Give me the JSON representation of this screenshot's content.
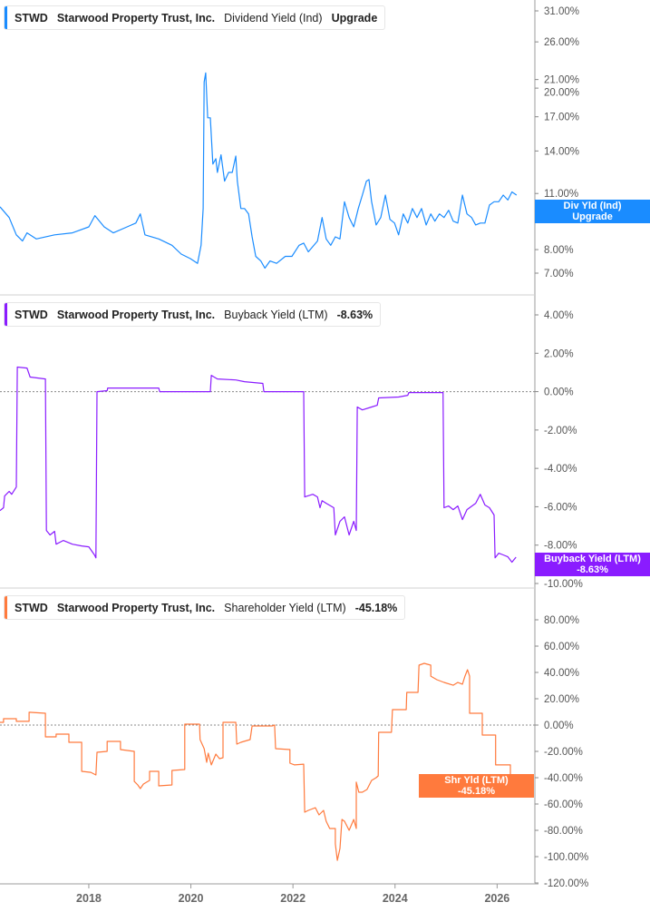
{
  "colors": {
    "dividend": "#1a8cff",
    "buyback": "#8a1cff",
    "shareholder": "#ff7a3d",
    "axis": "#bdbdbd",
    "zero_line": "#888888"
  },
  "chart_data": [
    {
      "type": "line",
      "legend": {
        "ticker": "STWD",
        "company": "Starwood Property Trust, Inc.",
        "metric": "Dividend Yield (Ind)",
        "value": "Upgrade"
      },
      "tag": {
        "line1": "Div Yld (Ind)",
        "line2": "Upgrade"
      },
      "y_scale": "log",
      "ylim": [
        6.5,
        33
      ],
      "y_ticks": [
        {
          "v": 31,
          "label": "31.00%"
        },
        {
          "v": 26,
          "label": "26.00%"
        },
        {
          "v": 21,
          "label": "21.00%"
        },
        {
          "v": 20,
          "label": "20.00%"
        },
        {
          "v": 17,
          "label": "17.00%"
        },
        {
          "v": 14,
          "label": "14.00%"
        },
        {
          "v": 11,
          "label": "11.00%"
        },
        {
          "v": 8,
          "label": "8.00%"
        },
        {
          "v": 7,
          "label": "7.00%"
        }
      ],
      "points": [
        [
          2016.26,
          10.2
        ],
        [
          2016.44,
          9.6
        ],
        [
          2016.58,
          8.7
        ],
        [
          2016.7,
          8.4
        ],
        [
          2016.79,
          8.8
        ],
        [
          2016.97,
          8.5
        ],
        [
          2017.33,
          8.7
        ],
        [
          2017.68,
          8.8
        ],
        [
          2018.0,
          9.1
        ],
        [
          2018.12,
          9.7
        ],
        [
          2018.3,
          9.1
        ],
        [
          2018.48,
          8.8
        ],
        [
          2018.75,
          9.1
        ],
        [
          2018.92,
          9.3
        ],
        [
          2019.01,
          9.8
        ],
        [
          2019.1,
          8.7
        ],
        [
          2019.37,
          8.5
        ],
        [
          2019.63,
          8.2
        ],
        [
          2019.81,
          7.8
        ],
        [
          2019.99,
          7.6
        ],
        [
          2020.13,
          7.4
        ],
        [
          2020.2,
          8.2
        ],
        [
          2020.24,
          10.1
        ],
        [
          2020.26,
          20.7
        ],
        [
          2020.29,
          21.8
        ],
        [
          2020.33,
          16.9
        ],
        [
          2020.38,
          16.9
        ],
        [
          2020.43,
          13.0
        ],
        [
          2020.49,
          13.4
        ],
        [
          2020.52,
          12.4
        ],
        [
          2020.59,
          13.7
        ],
        [
          2020.66,
          11.8
        ],
        [
          2020.74,
          12.4
        ],
        [
          2020.81,
          12.4
        ],
        [
          2020.88,
          13.6
        ],
        [
          2020.91,
          11.8
        ],
        [
          2020.98,
          10.1
        ],
        [
          2021.05,
          10.1
        ],
        [
          2021.13,
          9.8
        ],
        [
          2021.2,
          8.6
        ],
        [
          2021.27,
          7.7
        ],
        [
          2021.37,
          7.5
        ],
        [
          2021.45,
          7.2
        ],
        [
          2021.55,
          7.5
        ],
        [
          2021.68,
          7.4
        ],
        [
          2021.85,
          7.7
        ],
        [
          2021.98,
          7.7
        ],
        [
          2022.12,
          8.2
        ],
        [
          2022.21,
          8.3
        ],
        [
          2022.3,
          7.9
        ],
        [
          2022.48,
          8.4
        ],
        [
          2022.57,
          9.6
        ],
        [
          2022.65,
          8.5
        ],
        [
          2022.74,
          8.2
        ],
        [
          2022.83,
          8.6
        ],
        [
          2022.92,
          8.5
        ],
        [
          2023.01,
          10.5
        ],
        [
          2023.1,
          9.6
        ],
        [
          2023.19,
          9.1
        ],
        [
          2023.28,
          10.1
        ],
        [
          2023.36,
          10.9
        ],
        [
          2023.44,
          11.8
        ],
        [
          2023.49,
          11.9
        ],
        [
          2023.54,
          10.5
        ],
        [
          2023.63,
          9.2
        ],
        [
          2023.72,
          9.6
        ],
        [
          2023.81,
          10.9
        ],
        [
          2023.9,
          9.5
        ],
        [
          2023.99,
          9.3
        ],
        [
          2024.07,
          8.7
        ],
        [
          2024.16,
          9.8
        ],
        [
          2024.25,
          9.3
        ],
        [
          2024.34,
          10.1
        ],
        [
          2024.43,
          9.6
        ],
        [
          2024.52,
          10.1
        ],
        [
          2024.61,
          9.2
        ],
        [
          2024.7,
          9.8
        ],
        [
          2024.78,
          9.4
        ],
        [
          2024.87,
          9.8
        ],
        [
          2024.96,
          9.6
        ],
        [
          2025.05,
          10.0
        ],
        [
          2025.14,
          9.4
        ],
        [
          2025.23,
          9.3
        ],
        [
          2025.32,
          10.9
        ],
        [
          2025.41,
          9.8
        ],
        [
          2025.5,
          9.6
        ],
        [
          2025.58,
          9.2
        ],
        [
          2025.67,
          9.3
        ],
        [
          2025.76,
          9.3
        ],
        [
          2025.85,
          10.3
        ],
        [
          2025.94,
          10.5
        ],
        [
          2026.03,
          10.5
        ],
        [
          2026.12,
          10.9
        ],
        [
          2026.21,
          10.6
        ],
        [
          2026.29,
          11.1
        ],
        [
          2026.38,
          10.9
        ]
      ]
    },
    {
      "type": "line",
      "legend": {
        "ticker": "STWD",
        "company": "Starwood Property Trust, Inc.",
        "metric": "Buyback Yield (LTM)",
        "value": "-8.63%"
      },
      "tag": {
        "line1": "Buyback Yield (LTM)",
        "line2": "-8.63%"
      },
      "y_scale": "linear",
      "ylim": [
        -10,
        4
      ],
      "zero_line": true,
      "y_ticks": [
        {
          "v": 4,
          "label": "4.00%"
        },
        {
          "v": 2,
          "label": "2.00%"
        },
        {
          "v": 0,
          "label": "0.00%"
        },
        {
          "v": -2,
          "label": "-2.00%"
        },
        {
          "v": -4,
          "label": "-4.00%"
        },
        {
          "v": -6,
          "label": "-6.00%"
        },
        {
          "v": -8,
          "label": "-8.00%"
        },
        {
          "v": -10,
          "label": "-10.00%"
        }
      ],
      "points": [
        [
          2016.26,
          -6.2
        ],
        [
          2016.33,
          -6.05
        ],
        [
          2016.35,
          -5.44
        ],
        [
          2016.44,
          -5.2
        ],
        [
          2016.49,
          -5.35
        ],
        [
          2016.58,
          -4.97
        ],
        [
          2016.6,
          1.28
        ],
        [
          2016.79,
          1.23
        ],
        [
          2016.85,
          0.76
        ],
        [
          2017.15,
          0.66
        ],
        [
          2017.17,
          -7.24
        ],
        [
          2017.24,
          -7.47
        ],
        [
          2017.33,
          -7.28
        ],
        [
          2017.36,
          -7.95
        ],
        [
          2017.5,
          -7.76
        ],
        [
          2017.68,
          -7.95
        ],
        [
          2017.86,
          -8.04
        ],
        [
          2018.0,
          -8.09
        ],
        [
          2018.11,
          -8.51
        ],
        [
          2018.14,
          -8.66
        ],
        [
          2018.16,
          0
        ],
        [
          2018.36,
          0.05
        ],
        [
          2018.37,
          0.19
        ],
        [
          2019.37,
          0.19
        ],
        [
          2019.39,
          0
        ],
        [
          2020.38,
          0
        ],
        [
          2020.4,
          0.85
        ],
        [
          2020.52,
          0.66
        ],
        [
          2020.88,
          0.61
        ],
        [
          2021.05,
          0.52
        ],
        [
          2021.41,
          0.43
        ],
        [
          2021.43,
          0
        ],
        [
          2022.21,
          0
        ],
        [
          2022.23,
          -5.49
        ],
        [
          2022.39,
          -5.35
        ],
        [
          2022.48,
          -5.49
        ],
        [
          2022.53,
          -6.05
        ],
        [
          2022.57,
          -5.68
        ],
        [
          2022.65,
          -5.82
        ],
        [
          2022.8,
          -6.05
        ],
        [
          2022.83,
          -7.47
        ],
        [
          2022.92,
          -6.76
        ],
        [
          2023.01,
          -6.53
        ],
        [
          2023.1,
          -7.47
        ],
        [
          2023.19,
          -6.76
        ],
        [
          2023.24,
          -7.24
        ],
        [
          2023.26,
          -0.8
        ],
        [
          2023.36,
          -0.95
        ],
        [
          2023.54,
          -0.8
        ],
        [
          2023.65,
          -0.71
        ],
        [
          2023.68,
          -0.33
        ],
        [
          2024.07,
          -0.28
        ],
        [
          2024.25,
          -0.19
        ],
        [
          2024.27,
          -0.05
        ],
        [
          2024.94,
          -0.05
        ],
        [
          2024.96,
          -6.05
        ],
        [
          2025.05,
          -5.96
        ],
        [
          2025.14,
          -6.15
        ],
        [
          2025.23,
          -5.96
        ],
        [
          2025.32,
          -6.67
        ],
        [
          2025.41,
          -6.15
        ],
        [
          2025.58,
          -5.82
        ],
        [
          2025.67,
          -5.35
        ],
        [
          2025.76,
          -5.91
        ],
        [
          2025.85,
          -6.05
        ],
        [
          2025.94,
          -6.43
        ],
        [
          2025.96,
          -8.66
        ],
        [
          2026.03,
          -8.42
        ],
        [
          2026.12,
          -8.51
        ],
        [
          2026.21,
          -8.61
        ],
        [
          2026.29,
          -8.89
        ],
        [
          2026.37,
          -8.63
        ]
      ]
    },
    {
      "type": "line",
      "legend": {
        "ticker": "STWD",
        "company": "Starwood Property Trust, Inc.",
        "metric": "Shareholder Yield (LTM)",
        "value": "-45.18%"
      },
      "tag": {
        "line1": "Shr Yld (LTM)",
        "line2": "-45.18%"
      },
      "y_scale": "linear",
      "ylim": [
        -120,
        80
      ],
      "zero_line": true,
      "y_ticks": [
        {
          "v": 80,
          "label": "80.00%"
        },
        {
          "v": 60,
          "label": "60.00%"
        },
        {
          "v": 40,
          "label": "40.00%"
        },
        {
          "v": 20,
          "label": "20.00%"
        },
        {
          "v": 0,
          "label": "0.00%"
        },
        {
          "v": -20,
          "label": "-20.00%"
        },
        {
          "v": -40,
          "label": "-40.00%"
        },
        {
          "v": -60,
          "label": "-60.00%"
        },
        {
          "v": -80,
          "label": "-80.00%"
        },
        {
          "v": -100,
          "label": "-100.00%"
        },
        {
          "v": -120,
          "label": "-120.00%"
        }
      ],
      "points": [
        [
          2016.26,
          2.1
        ],
        [
          2016.33,
          2.1
        ],
        [
          2016.33,
          4.8
        ],
        [
          2016.58,
          4.8
        ],
        [
          2016.58,
          2.8
        ],
        [
          2016.83,
          2.8
        ],
        [
          2016.83,
          9.7
        ],
        [
          2017.15,
          9.0
        ],
        [
          2017.15,
          -9.0
        ],
        [
          2017.36,
          -9.0
        ],
        [
          2017.36,
          -6.9
        ],
        [
          2017.61,
          -6.9
        ],
        [
          2017.61,
          -13.1
        ],
        [
          2017.86,
          -13.1
        ],
        [
          2017.86,
          -35.2
        ],
        [
          2018.04,
          -35.9
        ],
        [
          2018.14,
          -37.9
        ],
        [
          2018.16,
          -20.7
        ],
        [
          2018.36,
          -20.0
        ],
        [
          2018.36,
          -12.4
        ],
        [
          2018.62,
          -12.4
        ],
        [
          2018.62,
          -18.6
        ],
        [
          2018.89,
          -20.0
        ],
        [
          2018.89,
          -42.8
        ],
        [
          2018.96,
          -45.5
        ],
        [
          2019.01,
          -48.3
        ],
        [
          2019.07,
          -44.8
        ],
        [
          2019.19,
          -42.1
        ],
        [
          2019.19,
          -35.2
        ],
        [
          2019.37,
          -35.2
        ],
        [
          2019.37,
          -46.2
        ],
        [
          2019.63,
          -45.5
        ],
        [
          2019.63,
          -34.5
        ],
        [
          2019.88,
          -33.8
        ],
        [
          2019.88,
          0.7
        ],
        [
          2020.17,
          0.7
        ],
        [
          2020.18,
          -11.0
        ],
        [
          2020.26,
          -17.9
        ],
        [
          2020.31,
          -28.3
        ],
        [
          2020.34,
          -21.4
        ],
        [
          2020.4,
          -30.3
        ],
        [
          2020.49,
          -22.1
        ],
        [
          2020.56,
          -25.5
        ],
        [
          2020.63,
          -24.8
        ],
        [
          2020.63,
          2.1
        ],
        [
          2020.88,
          2.1
        ],
        [
          2020.9,
          -14.5
        ],
        [
          2020.98,
          -13.1
        ],
        [
          2021.16,
          -11.0
        ],
        [
          2021.2,
          -0.7
        ],
        [
          2021.41,
          -0.7
        ],
        [
          2021.59,
          -0.7
        ],
        [
          2021.64,
          0
        ],
        [
          2021.66,
          -17.9
        ],
        [
          2021.94,
          -18.6
        ],
        [
          2021.94,
          -29.0
        ],
        [
          2022.03,
          -30.3
        ],
        [
          2022.21,
          -29.7
        ],
        [
          2022.23,
          -66.2
        ],
        [
          2022.3,
          -64.8
        ],
        [
          2022.44,
          -62.8
        ],
        [
          2022.51,
          -68.3
        ],
        [
          2022.6,
          -64.8
        ],
        [
          2022.65,
          -73.1
        ],
        [
          2022.72,
          -78.6
        ],
        [
          2022.83,
          -78.6
        ],
        [
          2022.83,
          -90.3
        ],
        [
          2022.87,
          -102.8
        ],
        [
          2022.92,
          -93.8
        ],
        [
          2022.96,
          -71.7
        ],
        [
          2023.01,
          -73.1
        ],
        [
          2023.1,
          -80.0
        ],
        [
          2023.19,
          -71.7
        ],
        [
          2023.24,
          -78.6
        ],
        [
          2023.24,
          -43.4
        ],
        [
          2023.29,
          -51.0
        ],
        [
          2023.36,
          -51.0
        ],
        [
          2023.45,
          -49.0
        ],
        [
          2023.54,
          -42.1
        ],
        [
          2023.63,
          -40.0
        ],
        [
          2023.67,
          -38.6
        ],
        [
          2023.68,
          -5.5
        ],
        [
          2023.93,
          -5.5
        ],
        [
          2023.95,
          11.7
        ],
        [
          2024.22,
          11.7
        ],
        [
          2024.23,
          24.8
        ],
        [
          2024.45,
          24.8
        ],
        [
          2024.47,
          45.5
        ],
        [
          2024.57,
          46.9
        ],
        [
          2024.7,
          45.5
        ],
        [
          2024.7,
          37.2
        ],
        [
          2024.82,
          34.5
        ],
        [
          2024.96,
          32.4
        ],
        [
          2025.14,
          30.3
        ],
        [
          2025.23,
          32.4
        ],
        [
          2025.32,
          31.0
        ],
        [
          2025.37,
          37.2
        ],
        [
          2025.42,
          42.1
        ],
        [
          2025.46,
          37.2
        ],
        [
          2025.46,
          9.0
        ],
        [
          2025.71,
          9.0
        ],
        [
          2025.71,
          -7.6
        ],
        [
          2025.97,
          -7.6
        ],
        [
          2025.97,
          -30.3
        ],
        [
          2026.26,
          -30.3
        ],
        [
          2026.26,
          -45.5
        ],
        [
          2026.38,
          -45.18
        ]
      ]
    }
  ],
  "x_axis": {
    "ticks": [
      {
        "v": 2018,
        "label": "2018"
      },
      {
        "v": 2020,
        "label": "2020"
      },
      {
        "v": 2022,
        "label": "2022"
      },
      {
        "v": 2024,
        "label": "2024"
      },
      {
        "v": 2026,
        "label": "2026"
      }
    ]
  }
}
